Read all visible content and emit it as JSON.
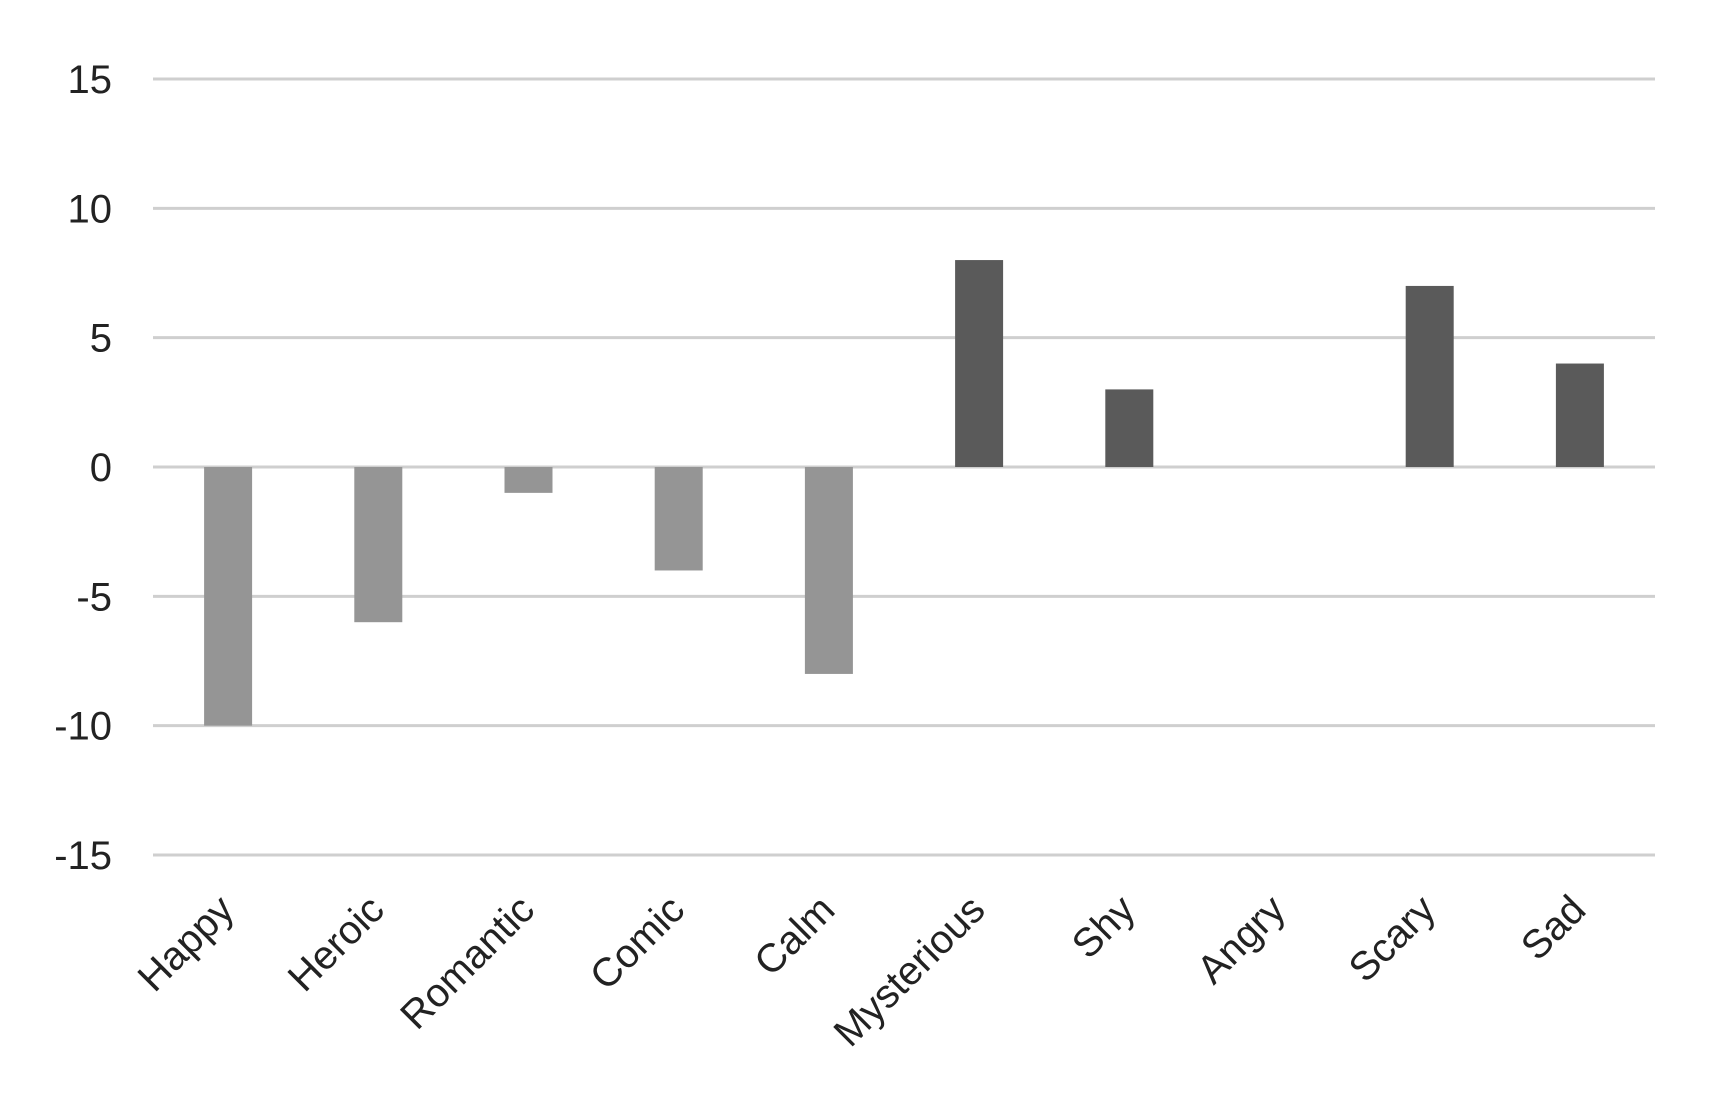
{
  "chart_data": {
    "type": "bar",
    "categories": [
      "Happy",
      "Heroic",
      "Romantic",
      "Comic",
      "Calm",
      "Mysterious",
      "Shy",
      "Angry",
      "Scary",
      "Sad"
    ],
    "values": [
      -10,
      -6,
      -1,
      -4,
      -8,
      8,
      3,
      0,
      7,
      4
    ],
    "ylim": [
      -15,
      15
    ],
    "yticks": [
      15,
      10,
      5,
      0,
      -5,
      -10,
      -15
    ],
    "ytick_labels": [
      "15",
      "10",
      "5",
      "0",
      "-5",
      "-10",
      "-15"
    ],
    "grid": true,
    "colors": {
      "negative": "#959595",
      "positive": "#5a5a5a",
      "grid": "#cfcfcf",
      "text": "#222222"
    }
  }
}
